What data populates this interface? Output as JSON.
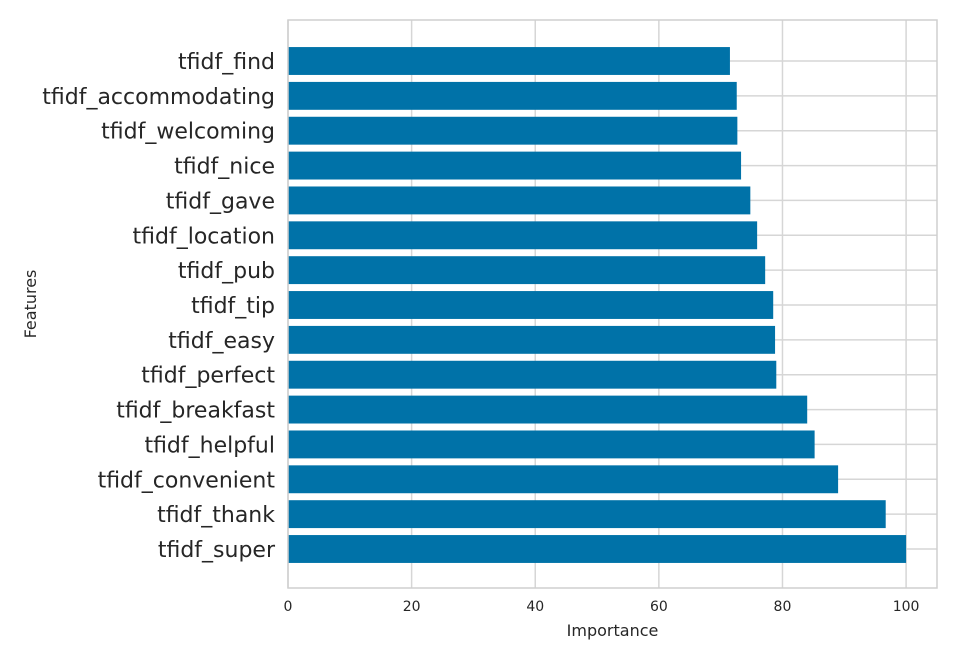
{
  "chart_data": {
    "type": "bar",
    "orientation": "horizontal",
    "title": "",
    "xlabel": "Importance",
    "ylabel": "Features",
    "xlim": [
      0,
      105
    ],
    "xticks": [
      0,
      20,
      40,
      60,
      80,
      100
    ],
    "grid": true,
    "bar_color": "#0072a8",
    "categories": [
      "tfidf_find",
      "tfidf_accommodating",
      "tfidf_welcoming",
      "tfidf_nice",
      "tfidf_gave",
      "tfidf_location",
      "tfidf_pub",
      "tfidf_tip",
      "tfidf_easy",
      "tfidf_perfect",
      "tfidf_breakfast",
      "tfidf_helpful",
      "tfidf_convenient",
      "tfidf_thank",
      "tfidf_super"
    ],
    "values": [
      71.5,
      72.6,
      72.7,
      73.3,
      74.8,
      75.9,
      77.2,
      78.5,
      78.8,
      79.0,
      84.0,
      85.2,
      89.0,
      96.7,
      100.0
    ]
  }
}
